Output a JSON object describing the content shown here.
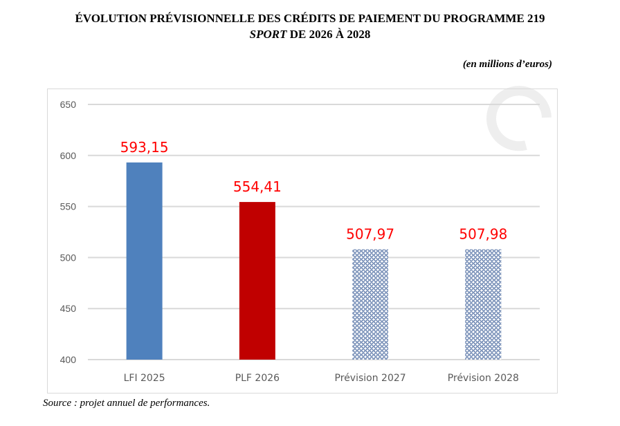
{
  "title_line1": "ÉVOLUTION PRÉVISIONNELLE DES CRÉDITS DE PAIEMENT DU PROGRAMME 219",
  "title_line2_italic": "SPORT",
  "title_line2_rest": " DE 2026 À 2028",
  "unit": "(en millions d’euros)",
  "source": "Source : projet annuel de performances.",
  "chart_data": {
    "type": "bar",
    "categories": [
      "LFI 2025",
      "PLF 2026",
      "Prévision 2027",
      "Prévision 2028"
    ],
    "values": [
      593.15,
      554.41,
      507.97,
      507.98
    ],
    "labels": [
      "593,15",
      "554,41",
      "507,97",
      "507,98"
    ],
    "colors": [
      "#4f81bd",
      "#c00000",
      "pattern",
      "pattern"
    ],
    "label_color": "#ff0000",
    "ylim": [
      400,
      650
    ],
    "yticks": [
      400,
      450,
      500,
      550,
      600,
      650
    ],
    "grid": true,
    "xlabel": "",
    "ylabel": ""
  }
}
